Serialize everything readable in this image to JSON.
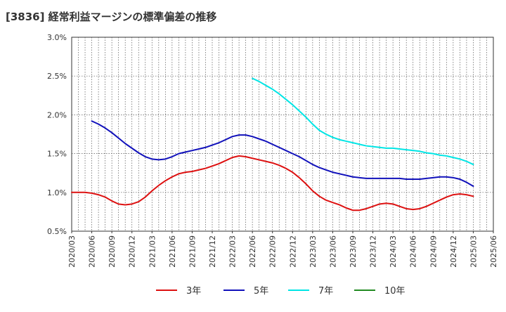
{
  "chart_data": {
    "type": "line",
    "title": "[3836]  経常利益マージンの標準偏差の推移",
    "xlabel": "",
    "ylabel": "",
    "x_ticks": [
      "2020/03",
      "2020/06",
      "2020/09",
      "2020/12",
      "2021/03",
      "2021/06",
      "2021/09",
      "2021/12",
      "2022/03",
      "2022/06",
      "2022/09",
      "2022/12",
      "2023/03",
      "2023/06",
      "2023/09",
      "2023/12",
      "2024/03",
      "2024/06",
      "2024/09",
      "2024/12",
      "2025/03",
      "2025/06"
    ],
    "y_ticks": [
      "0.5%",
      "1.0%",
      "1.5%",
      "2.0%",
      "2.5%",
      "3.0%"
    ],
    "ylim": [
      0.5,
      3.0
    ],
    "grid": true,
    "legend_position": "bottom",
    "series": [
      {
        "name": "3年",
        "color": "#dd1111",
        "points": [
          [
            "2020/03",
            1.0
          ],
          [
            "2020/04",
            1.0
          ],
          [
            "2020/05",
            1.0
          ],
          [
            "2020/06",
            0.99
          ],
          [
            "2020/07",
            0.97
          ],
          [
            "2020/08",
            0.94
          ],
          [
            "2020/09",
            0.89
          ],
          [
            "2020/10",
            0.85
          ],
          [
            "2020/11",
            0.84
          ],
          [
            "2020/12",
            0.85
          ],
          [
            "2021/01",
            0.88
          ],
          [
            "2021/02",
            0.94
          ],
          [
            "2021/03",
            1.02
          ],
          [
            "2021/04",
            1.09
          ],
          [
            "2021/05",
            1.15
          ],
          [
            "2021/06",
            1.2
          ],
          [
            "2021/07",
            1.24
          ],
          [
            "2021/08",
            1.26
          ],
          [
            "2021/09",
            1.27
          ],
          [
            "2021/10",
            1.29
          ],
          [
            "2021/11",
            1.31
          ],
          [
            "2021/12",
            1.34
          ],
          [
            "2022/01",
            1.37
          ],
          [
            "2022/02",
            1.41
          ],
          [
            "2022/03",
            1.45
          ],
          [
            "2022/04",
            1.47
          ],
          [
            "2022/05",
            1.46
          ],
          [
            "2022/06",
            1.44
          ],
          [
            "2022/07",
            1.42
          ],
          [
            "2022/08",
            1.4
          ],
          [
            "2022/09",
            1.38
          ],
          [
            "2022/10",
            1.35
          ],
          [
            "2022/11",
            1.31
          ],
          [
            "2022/12",
            1.26
          ],
          [
            "2023/01",
            1.19
          ],
          [
            "2023/02",
            1.11
          ],
          [
            "2023/03",
            1.02
          ],
          [
            "2023/04",
            0.95
          ],
          [
            "2023/05",
            0.9
          ],
          [
            "2023/06",
            0.87
          ],
          [
            "2023/07",
            0.84
          ],
          [
            "2023/08",
            0.8
          ],
          [
            "2023/09",
            0.77
          ],
          [
            "2023/10",
            0.77
          ],
          [
            "2023/11",
            0.79
          ],
          [
            "2023/12",
            0.82
          ],
          [
            "2024/01",
            0.85
          ],
          [
            "2024/02",
            0.86
          ],
          [
            "2024/03",
            0.85
          ],
          [
            "2024/04",
            0.82
          ],
          [
            "2024/05",
            0.79
          ],
          [
            "2024/06",
            0.78
          ],
          [
            "2024/07",
            0.79
          ],
          [
            "2024/08",
            0.82
          ],
          [
            "2024/09",
            0.86
          ],
          [
            "2024/10",
            0.9
          ],
          [
            "2024/11",
            0.94
          ],
          [
            "2024/12",
            0.97
          ],
          [
            "2025/01",
            0.98
          ],
          [
            "2025/02",
            0.97
          ],
          [
            "2025/03",
            0.95
          ]
        ]
      },
      {
        "name": "5年",
        "color": "#1111bb",
        "points": [
          [
            "2020/06",
            1.92
          ],
          [
            "2020/07",
            1.88
          ],
          [
            "2020/08",
            1.83
          ],
          [
            "2020/09",
            1.77
          ],
          [
            "2020/10",
            1.7
          ],
          [
            "2020/11",
            1.63
          ],
          [
            "2020/12",
            1.57
          ],
          [
            "2021/01",
            1.51
          ],
          [
            "2021/02",
            1.46
          ],
          [
            "2021/03",
            1.43
          ],
          [
            "2021/04",
            1.42
          ],
          [
            "2021/05",
            1.43
          ],
          [
            "2021/06",
            1.46
          ],
          [
            "2021/07",
            1.5
          ],
          [
            "2021/08",
            1.52
          ],
          [
            "2021/09",
            1.54
          ],
          [
            "2021/10",
            1.56
          ],
          [
            "2021/11",
            1.58
          ],
          [
            "2021/12",
            1.61
          ],
          [
            "2022/01",
            1.64
          ],
          [
            "2022/02",
            1.68
          ],
          [
            "2022/03",
            1.72
          ],
          [
            "2022/04",
            1.74
          ],
          [
            "2022/05",
            1.74
          ],
          [
            "2022/06",
            1.72
          ],
          [
            "2022/07",
            1.69
          ],
          [
            "2022/08",
            1.66
          ],
          [
            "2022/09",
            1.62
          ],
          [
            "2022/10",
            1.58
          ],
          [
            "2022/11",
            1.54
          ],
          [
            "2022/12",
            1.5
          ],
          [
            "2023/01",
            1.46
          ],
          [
            "2023/02",
            1.41
          ],
          [
            "2023/03",
            1.36
          ],
          [
            "2023/04",
            1.32
          ],
          [
            "2023/05",
            1.29
          ],
          [
            "2023/06",
            1.26
          ],
          [
            "2023/07",
            1.24
          ],
          [
            "2023/08",
            1.22
          ],
          [
            "2023/09",
            1.2
          ],
          [
            "2023/10",
            1.19
          ],
          [
            "2023/11",
            1.18
          ],
          [
            "2023/12",
            1.18
          ],
          [
            "2024/01",
            1.18
          ],
          [
            "2024/02",
            1.18
          ],
          [
            "2024/03",
            1.18
          ],
          [
            "2024/04",
            1.18
          ],
          [
            "2024/05",
            1.17
          ],
          [
            "2024/06",
            1.17
          ],
          [
            "2024/07",
            1.17
          ],
          [
            "2024/08",
            1.18
          ],
          [
            "2024/09",
            1.19
          ],
          [
            "2024/10",
            1.2
          ],
          [
            "2024/11",
            1.2
          ],
          [
            "2024/12",
            1.19
          ],
          [
            "2025/01",
            1.17
          ],
          [
            "2025/02",
            1.13
          ],
          [
            "2025/03",
            1.08
          ]
        ]
      },
      {
        "name": "7年",
        "color": "#00e5e5",
        "points": [
          [
            "2022/06",
            2.47
          ],
          [
            "2022/07",
            2.43
          ],
          [
            "2022/08",
            2.38
          ],
          [
            "2022/09",
            2.33
          ],
          [
            "2022/10",
            2.27
          ],
          [
            "2022/11",
            2.2
          ],
          [
            "2022/12",
            2.13
          ],
          [
            "2023/01",
            2.05
          ],
          [
            "2023/02",
            1.97
          ],
          [
            "2023/03",
            1.88
          ],
          [
            "2023/04",
            1.8
          ],
          [
            "2023/05",
            1.75
          ],
          [
            "2023/06",
            1.71
          ],
          [
            "2023/07",
            1.68
          ],
          [
            "2023/08",
            1.66
          ],
          [
            "2023/09",
            1.64
          ],
          [
            "2023/10",
            1.62
          ],
          [
            "2023/11",
            1.6
          ],
          [
            "2023/12",
            1.59
          ],
          [
            "2024/01",
            1.58
          ],
          [
            "2024/02",
            1.57
          ],
          [
            "2024/03",
            1.57
          ],
          [
            "2024/04",
            1.56
          ],
          [
            "2024/05",
            1.55
          ],
          [
            "2024/06",
            1.54
          ],
          [
            "2024/07",
            1.53
          ],
          [
            "2024/08",
            1.51
          ],
          [
            "2024/09",
            1.5
          ],
          [
            "2024/10",
            1.48
          ],
          [
            "2024/11",
            1.47
          ],
          [
            "2024/12",
            1.45
          ],
          [
            "2025/01",
            1.43
          ],
          [
            "2025/02",
            1.4
          ],
          [
            "2025/03",
            1.36
          ]
        ]
      },
      {
        "name": "10年",
        "color": "#228b22",
        "points": []
      }
    ]
  }
}
